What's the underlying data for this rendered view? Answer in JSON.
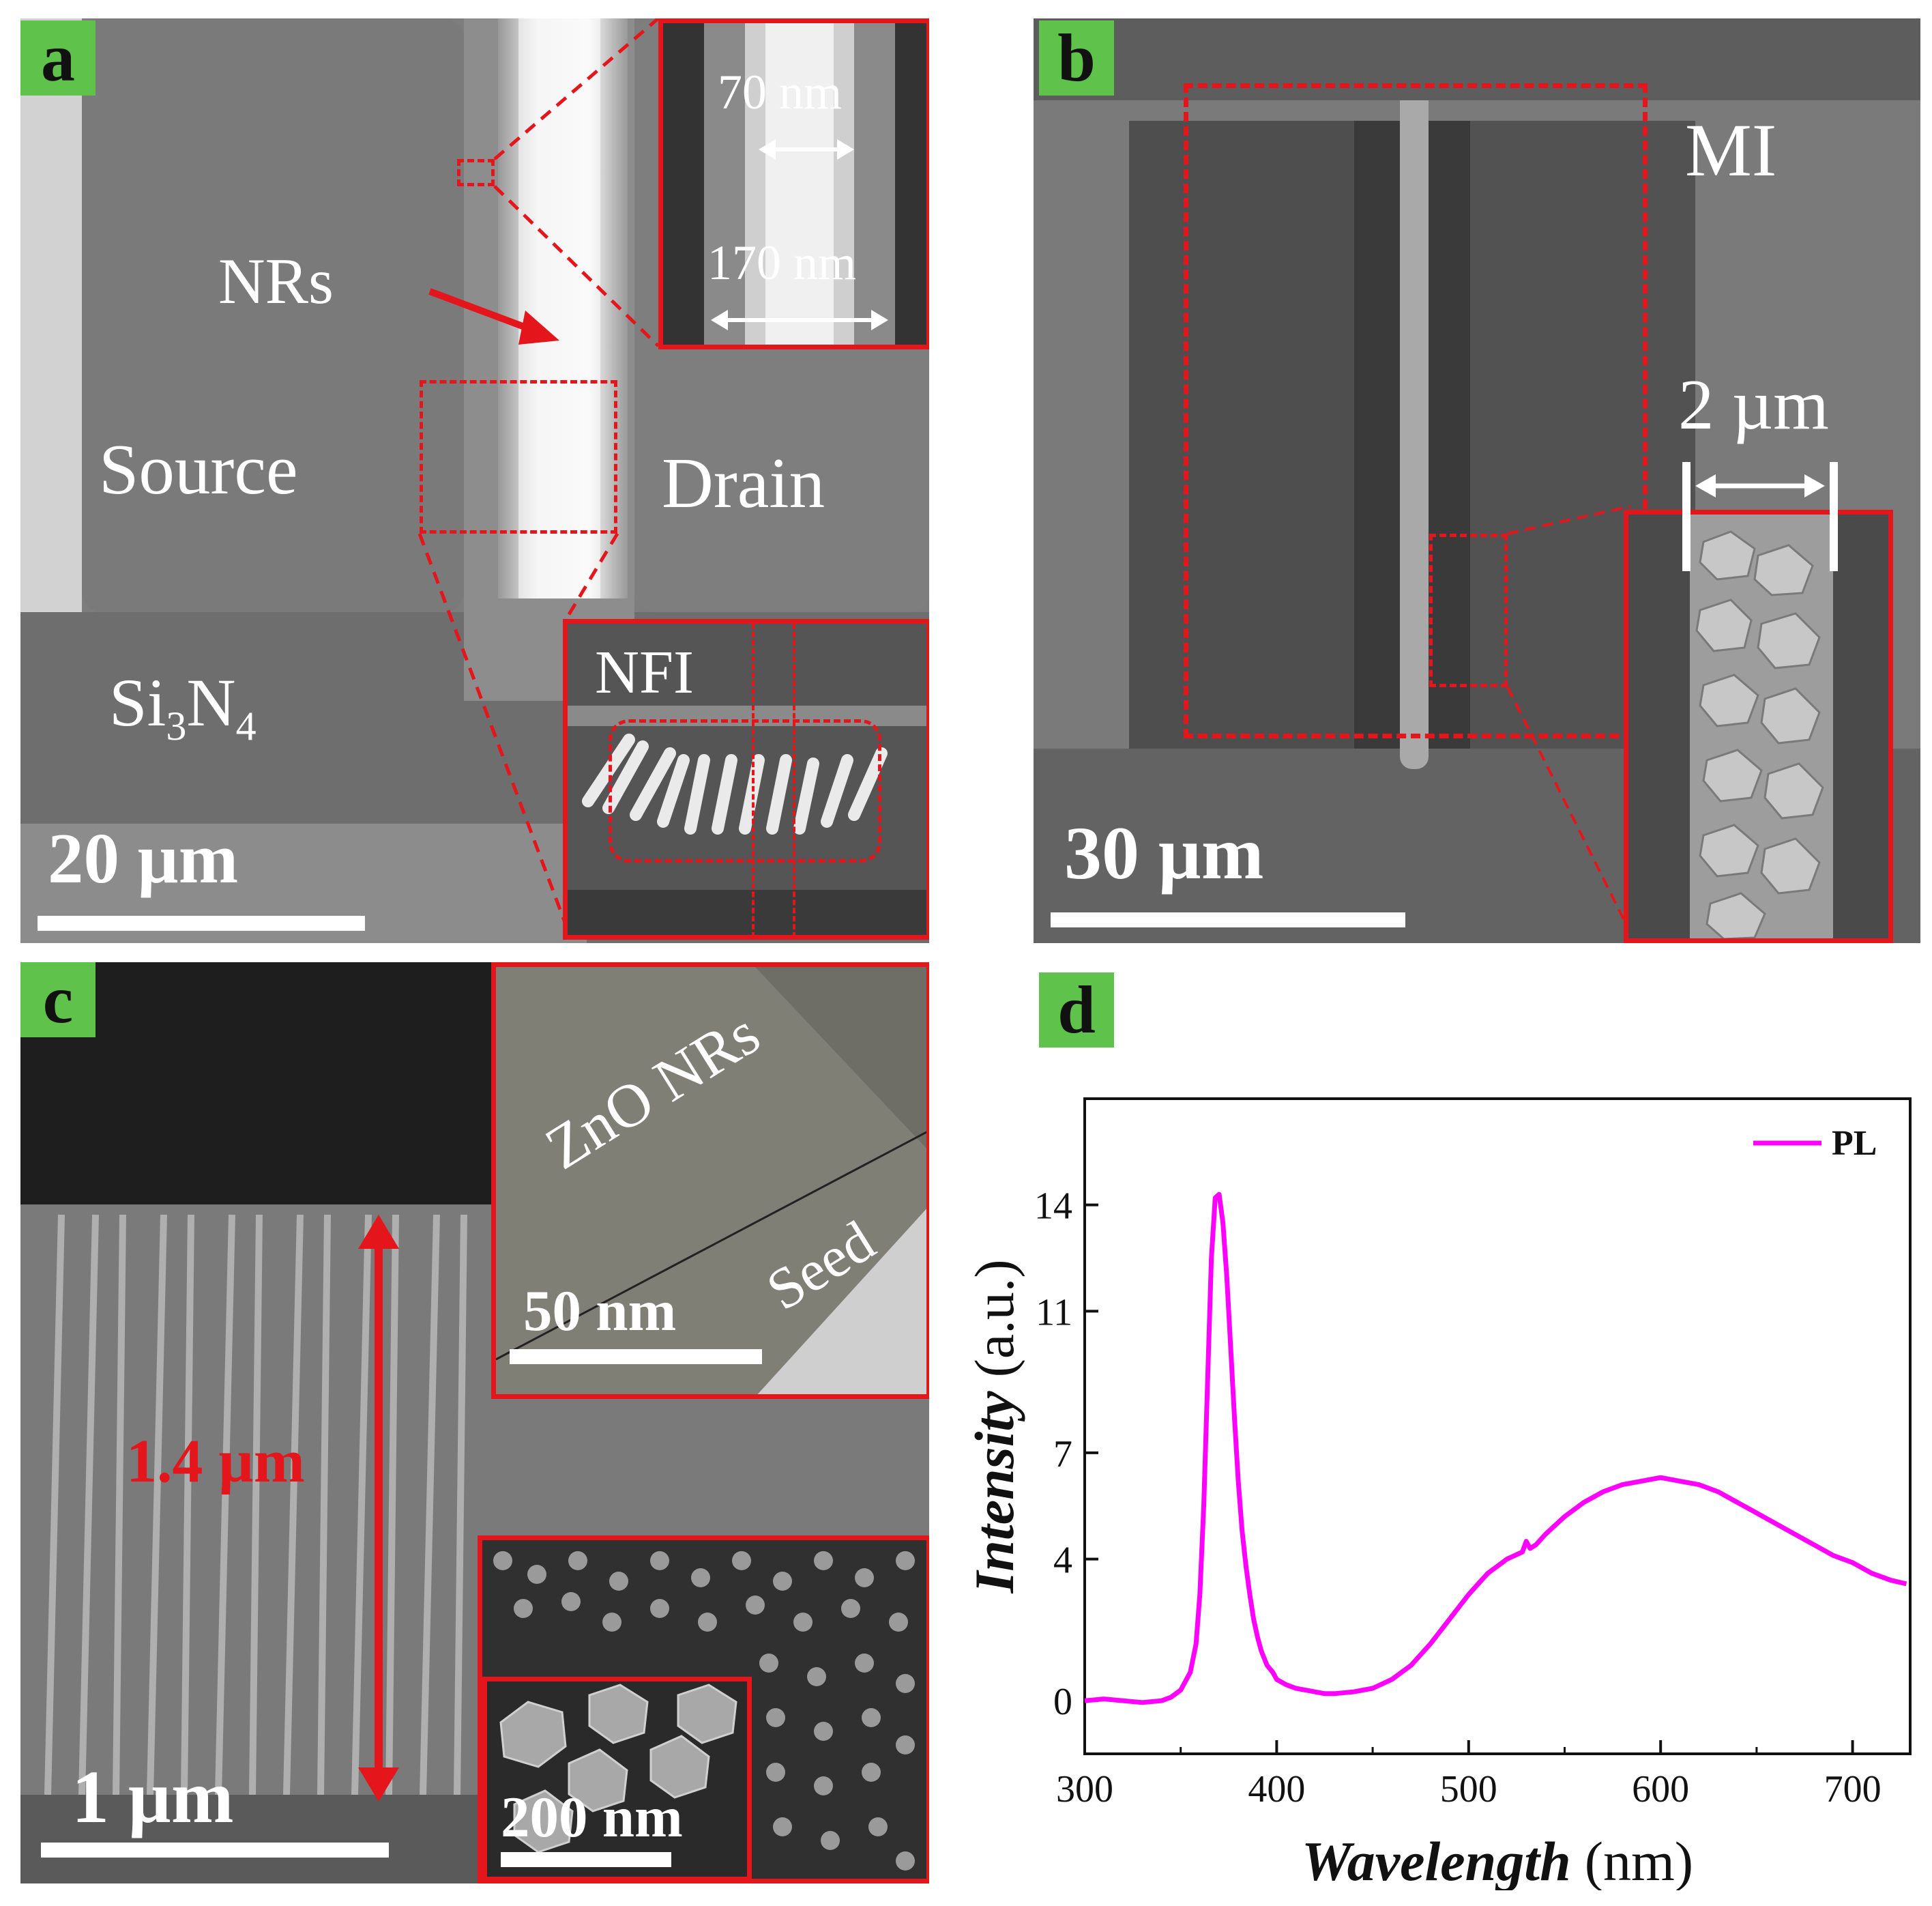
{
  "panel_a": {
    "label": "a",
    "nrs": "NRs",
    "source": "Source",
    "drain": "Drain",
    "si3n4_base": "Si",
    "si3n4_sub1": "3",
    "si3n4_n": "N",
    "si3n4_sub2": "4",
    "scale": "20 µm",
    "inset_top": {
      "width_inner": "70 nm",
      "width_outer": "170 nm"
    },
    "inset_bottom": {
      "label": "NFI"
    }
  },
  "panel_b": {
    "label": "b",
    "mi": "MI",
    "width": "2 µm",
    "scale": "30 µm"
  },
  "panel_c": {
    "label": "c",
    "height": "1.4 µm",
    "scale": "1 µm",
    "inset_top": {
      "nrs": "ZnO NRs",
      "seed": "Seed",
      "scale": "50 nm"
    },
    "inset_bottom": {
      "scale": "200 nm"
    }
  },
  "panel_d": {
    "label": "d"
  },
  "colors": {
    "accent_red": "#e4161b",
    "label_green": "#5fc24a",
    "pl_line": "#ff00ff"
  },
  "chart_data": {
    "type": "line",
    "xlabel": "Wavelength",
    "xunit": "(nm)",
    "ylabel": "Intensity",
    "yunit": "(a.u.)",
    "xlim": [
      300,
      730
    ],
    "ylim": [
      -1.5,
      17
    ],
    "xticks": [
      300,
      400,
      500,
      600,
      700
    ],
    "yticks": [
      0,
      4,
      7,
      11,
      14
    ],
    "legend": "top-right",
    "series": [
      {
        "name": "PL",
        "x": [
          300,
          310,
          320,
          330,
          340,
          345,
          350,
          355,
          358,
          360,
          362,
          364,
          366,
          368,
          370,
          372,
          374,
          376,
          378,
          380,
          382,
          384,
          386,
          388,
          390,
          392,
          395,
          398,
          400,
          405,
          410,
          415,
          420,
          425,
          430,
          440,
          450,
          460,
          470,
          480,
          490,
          500,
          510,
          520,
          528,
          530,
          532,
          535,
          540,
          550,
          560,
          570,
          580,
          590,
          600,
          610,
          620,
          630,
          640,
          650,
          660,
          670,
          680,
          690,
          700,
          710,
          720,
          728
        ],
        "values": [
          0.0,
          0.05,
          0.0,
          -0.05,
          0.0,
          0.1,
          0.3,
          0.8,
          1.6,
          3.0,
          5.5,
          9.0,
          12.5,
          14.2,
          14.3,
          13.5,
          12.0,
          10.0,
          8.0,
          6.2,
          4.8,
          3.8,
          3.0,
          2.3,
          1.8,
          1.4,
          1.0,
          0.8,
          0.6,
          0.45,
          0.35,
          0.3,
          0.25,
          0.2,
          0.2,
          0.25,
          0.35,
          0.6,
          1.0,
          1.6,
          2.3,
          3.0,
          3.6,
          4.0,
          4.2,
          4.5,
          4.3,
          4.4,
          4.7,
          5.2,
          5.6,
          5.9,
          6.1,
          6.2,
          6.3,
          6.2,
          6.1,
          5.9,
          5.6,
          5.3,
          5.0,
          4.7,
          4.4,
          4.1,
          3.9,
          3.6,
          3.4,
          3.3
        ]
      }
    ]
  }
}
